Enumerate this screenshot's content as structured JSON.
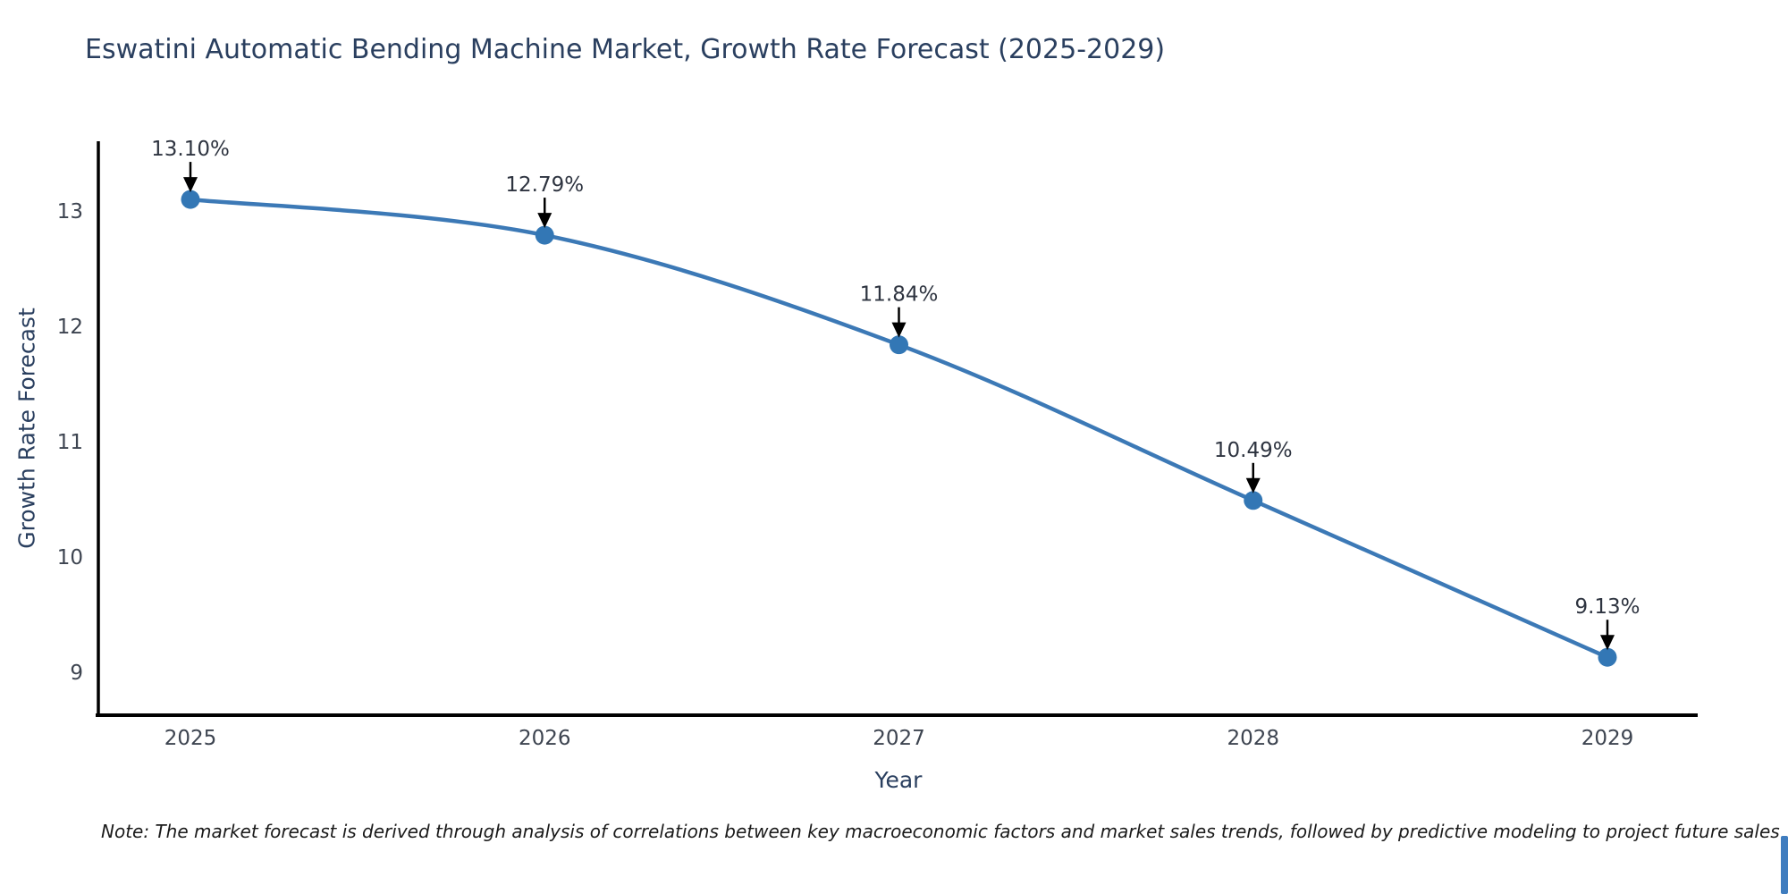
{
  "title": "Eswatini Automatic Bending Machine Market, Growth Rate Forecast (2025-2029)",
  "note": "Note: The market forecast is derived through analysis of correlations between key macroeconomic factors and market sales trends, followed by predictive modeling to project future sales",
  "chart_data": {
    "type": "line",
    "title": "Eswatini Automatic Bending Machine Market, Growth Rate Forecast (2025-2029)",
    "x": [
      2025,
      2026,
      2027,
      2028,
      2029
    ],
    "series": [
      {
        "name": "Growth Rate Forecast",
        "values": [
          13.1,
          12.79,
          11.84,
          10.49,
          9.13
        ]
      }
    ],
    "point_labels": [
      "13.10%",
      "12.79%",
      "11.84%",
      "10.49%",
      "9.13%"
    ],
    "xlabel": "Year",
    "ylabel": "Growth Rate Forecast",
    "xticks": [
      "2025",
      "2026",
      "2027",
      "2028",
      "2029"
    ],
    "yticks": [
      9,
      10,
      11,
      12,
      13
    ],
    "ylim": [
      8.63,
      13.6
    ],
    "grid": false,
    "legend": "none",
    "line_style": "spline",
    "annotation_arrows": "down"
  },
  "colors": {
    "line": "#3c79b6",
    "marker": "#3377b5",
    "axis_line": "#000000",
    "title_text": "#2a3f5f",
    "axis_title_text": "#2a3f5f",
    "tick_text": "#3d4450",
    "annotation_text": "#2e3440",
    "arrow": "#000000",
    "note_text": "#1a1a1a",
    "edge_bar": "#3f7dbf"
  }
}
